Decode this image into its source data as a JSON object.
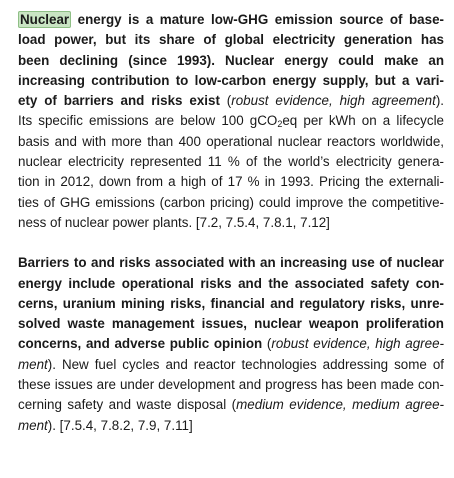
{
  "paragraph1": {
    "highlight_word": "Nuclear",
    "bold_lines": [
      " energy is a mature low-GHG emission source of base-",
      "load power, but its share of global electricity generation has",
      "been declining (since 1993). Nuclear energy could make an",
      "increasing contribution to low-carbon energy supply, but a vari-"
    ],
    "bold_last_line": "ety of barriers and risks exist",
    "evidence_open": " (",
    "evidence_italic": "robust evidence, high agreement",
    "evidence_close": ").",
    "body_line1_a": "Its specific emissions are below 100 gCO",
    "body_line1_sub": "2",
    "body_line1_b": "eq per kWh on a lifecycle",
    "body_lines": [
      "basis and with more than 400 operational nuclear reactors worldwide,",
      "nuclear electricity represented 11 % of the world’s electricity genera-",
      "tion in 2012, down from a high of 17 % in 1993. Pricing the externali-",
      "ties of GHG emissions (carbon pricing) could improve the competitive-"
    ],
    "body_last_line": "ness of nuclear power plants. [7.2, 7.5.4, 7.8.1, 7.12]"
  },
  "paragraph2": {
    "bold_lines": [
      "Barriers to and risks associated with an increasing use of nuclear",
      "energy include operational risks and the associated safety con-",
      "cerns, uranium mining risks, financial and regulatory risks, unre-",
      "solved waste management issues, nuclear weapon proliferation"
    ],
    "bold_line5": "concerns, and adverse public opinion",
    "line5_open": " (",
    "line5_italic": "robust evidence, high agree-",
    "line6_italic": "ment",
    "line6_rest": "). New fuel cycles and reactor technologies addressing some of",
    "body_lines": [
      "these issues are under development and progress has been made con-",
      "cerning safety and waste disposal ("
    ],
    "line8_italic": "medium evidence, medium agree-",
    "line9_italic": "ment",
    "line9_rest": "). [7.5.4, 7.8.2, 7.9, 7.11]"
  }
}
